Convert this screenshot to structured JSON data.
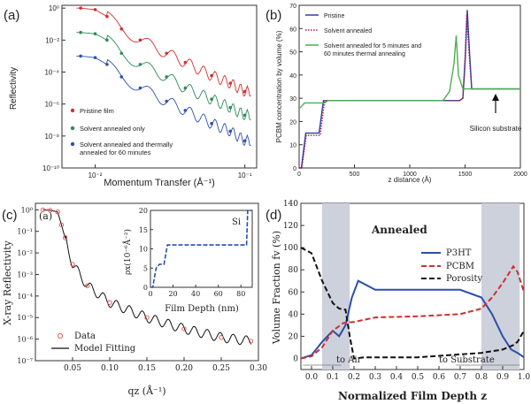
{
  "panels": {
    "a": {
      "letter": "(a)",
      "xlabel": "Momentum Transfer (Å⁻¹)",
      "ylabel": "Reflectivity",
      "yticks": [
        "10⁰",
        "10⁻²",
        "10⁻⁴",
        "10⁻⁶",
        "10⁻⁸",
        "10⁻¹⁰"
      ],
      "xticks": [
        "10⁻²",
        "10⁻¹"
      ],
      "legend": [
        "Pristine film",
        "Solvent annealed only",
        "Solvent annealed and thermally annealed for 60 minutes"
      ]
    },
    "b": {
      "letter": "(b)",
      "xlabel": "z distance (Å)",
      "ylabel": "PCBM concentration by volume (%)",
      "legend": [
        "Pristine",
        "Solvent annealed",
        "Solvent annealed for 5 minutes and 60 minutes thermal annealing"
      ],
      "annotation": "Silicon substrate"
    },
    "c": {
      "letter": "(c)",
      "inner_letter": "(a)",
      "xlabel": "qz (Å⁻¹)",
      "ylabel": "X-ray Reflectivity",
      "yticks": [
        "10⁰",
        "10⁻¹",
        "10⁻²",
        "10⁻³",
        "10⁻⁴",
        "10⁻⁵",
        "10⁻⁶",
        "10⁻⁷"
      ],
      "legend": [
        "Data",
        "Model Fitting"
      ],
      "inset": {
        "xlabel": "Film Depth (nm)",
        "ylabel": "ρx(10⁻⁶Å⁻²)",
        "annotation": "Si"
      }
    },
    "d": {
      "letter": "(d)",
      "title": "Annealed",
      "xlabel": "Normalized Film Depth z",
      "ylabel": "Volume Fraction fv (%)",
      "legend": [
        "P3HT",
        "PCBM",
        "Porosity"
      ],
      "left_label": "to Air",
      "right_label": "to Substrate"
    }
  },
  "chart_data": [
    {
      "panel": "a",
      "type": "scatter",
      "xscale": "log",
      "yscale": "log",
      "xlim": [
        0.006,
        0.12
      ],
      "ylim": [
        1e-10,
        1.5
      ],
      "xlabel": "Momentum Transfer (Å⁻¹)",
      "ylabel": "Reflectivity",
      "series": [
        {
          "name": "Pristine film",
          "color": "#d03030",
          "offset": 1,
          "x": [
            0.008,
            0.01,
            0.012,
            0.015,
            0.02,
            0.03,
            0.04,
            0.06,
            0.08,
            0.1
          ],
          "y": [
            1.0,
            0.8,
            0.3,
            0.05,
            0.01,
            0.0015,
            0.0004,
            6e-05,
            2e-05,
            6e-06
          ]
        },
        {
          "name": "Solvent annealed only",
          "color": "#2e8a5a",
          "offset": 0.03,
          "x": [
            0.008,
            0.01,
            0.012,
            0.015,
            0.02,
            0.03,
            0.04,
            0.06,
            0.08,
            0.1
          ],
          "y": [
            0.03,
            0.025,
            0.01,
            0.0015,
            0.0003,
            5e-05,
            1e-05,
            2e-06,
            6e-07,
            2e-07
          ]
        },
        {
          "name": "Solvent annealed and thermally annealed for 60 minutes",
          "color": "#3050b0",
          "offset": 0.001,
          "x": [
            0.008,
            0.01,
            0.012,
            0.015,
            0.02,
            0.03,
            0.04,
            0.06,
            0.08,
            0.1
          ],
          "y": [
            0.001,
            0.0008,
            0.0003,
            5e-05,
            1e-05,
            1.5e-06,
            4e-07,
            6e-08,
            2e-08,
            5e-09
          ]
        }
      ]
    },
    {
      "panel": "b",
      "type": "line",
      "xlim": [
        0,
        2000
      ],
      "ylim": [
        0,
        70
      ],
      "xticks": [
        0,
        500,
        1000,
        1500,
        2000
      ],
      "yticks": [
        0,
        10,
        20,
        30,
        40,
        50,
        60,
        70
      ],
      "xlabel": "z distance (Å)",
      "ylabel": "PCBM concentration by volume (%)",
      "series": [
        {
          "name": "Pristine",
          "color": "#2a3fa0",
          "style": "solid",
          "x": [
            0,
            20,
            60,
            80,
            180,
            220,
            1450,
            1480,
            1500,
            1520,
            1540,
            1560,
            1600,
            2000
          ],
          "y": [
            0,
            0,
            15,
            15,
            15,
            29,
            29,
            30,
            45,
            68,
            50,
            34,
            34,
            34
          ]
        },
        {
          "name": "Solvent annealed",
          "color": "#a02060",
          "style": "dotted",
          "x": [
            0,
            25,
            65,
            85,
            190,
            230,
            1450,
            1480,
            1500,
            1515,
            1535,
            1560,
            1600,
            2000
          ],
          "y": [
            0,
            0,
            14,
            14,
            14,
            29,
            29,
            30,
            48,
            66,
            50,
            34,
            34,
            34
          ]
        },
        {
          "name": "Solvent annealed for 5 minutes and 60 minutes thermal annealing",
          "color": "#4caf50",
          "style": "solid",
          "x": [
            0,
            10,
            50,
            80,
            230,
            260,
            1300,
            1360,
            1400,
            1420,
            1440,
            1480,
            1600,
            2000
          ],
          "y": [
            26,
            26,
            28,
            28,
            28,
            29,
            29,
            33,
            45,
            57,
            40,
            34,
            34,
            34
          ]
        }
      ]
    },
    {
      "panel": "c",
      "type": "scatter",
      "yscale": "log",
      "xlim": [
        0,
        0.3
      ],
      "ylim": [
        1e-07,
        2
      ],
      "xticks": [
        0.05,
        0.1,
        0.15,
        0.2,
        0.25,
        0.3
      ],
      "xlabel": "qz (Å⁻¹)",
      "ylabel": "X-ray Reflectivity",
      "series": [
        {
          "name": "Data",
          "color": "#e05050",
          "marker": "circle",
          "x": [
            0.01,
            0.02,
            0.03,
            0.035,
            0.04,
            0.05,
            0.07,
            0.1,
            0.15,
            0.2,
            0.25,
            0.29
          ],
          "y": [
            1,
            0.95,
            0.8,
            0.2,
            0.05,
            0.003,
            0.0003,
            5e-05,
            1e-05,
            3e-06,
            1.2e-06,
            8e-07
          ]
        },
        {
          "name": "Model Fitting",
          "color": "#111111",
          "marker": "line",
          "x": [
            0.01,
            0.02,
            0.03,
            0.035,
            0.04,
            0.05,
            0.07,
            0.1,
            0.15,
            0.2,
            0.25,
            0.29
          ],
          "y": [
            1,
            0.95,
            0.8,
            0.2,
            0.05,
            0.003,
            0.0003,
            5e-05,
            1e-05,
            3e-06,
            1.2e-06,
            8e-07
          ]
        }
      ],
      "inset": {
        "type": "line",
        "xlim": [
          0,
          90
        ],
        "ylim": [
          0,
          20
        ],
        "xticks": [
          0,
          20,
          40,
          60,
          80
        ],
        "yticks": [
          0,
          5,
          10,
          15,
          20
        ],
        "xlabel": "Film Depth (nm)",
        "ylabel": "ρx(10⁻⁶Å⁻²)",
        "x": [
          0,
          2,
          5,
          8,
          12,
          15,
          18,
          80,
          85,
          86,
          90
        ],
        "y": [
          0,
          0,
          5,
          6,
          6,
          11,
          11,
          11,
          11,
          20,
          20
        ]
      }
    },
    {
      "panel": "d",
      "type": "line",
      "xlim": [
        -0.05,
        1.0
      ],
      "ylim": [
        -10,
        140
      ],
      "xticks": [
        0.0,
        0.1,
        0.2,
        0.3,
        0.4,
        0.5,
        0.6,
        0.7,
        0.8,
        0.9,
        1.0
      ],
      "yticks": [
        0,
        20,
        40,
        60,
        80,
        100,
        120,
        140
      ],
      "xlabel": "Normalized Film Depth z",
      "ylabel": "Volume Fraction fv (%)",
      "shaded_regions": [
        [
          0.05,
          0.18
        ],
        [
          0.8,
          0.98
        ]
      ],
      "series": [
        {
          "name": "P3HT",
          "color": "#2a4fa8",
          "style": "solid",
          "x": [
            -0.05,
            0.0,
            0.05,
            0.1,
            0.13,
            0.16,
            0.19,
            0.22,
            0.3,
            0.5,
            0.7,
            0.8,
            0.85,
            0.9,
            0.94,
            0.97,
            1.0
          ],
          "y": [
            0,
            3,
            15,
            25,
            20,
            30,
            55,
            70,
            62,
            62,
            62,
            55,
            40,
            20,
            8,
            5,
            1
          ]
        },
        {
          "name": "PCBM",
          "color": "#d03030",
          "style": "dashed",
          "x": [
            -0.05,
            0.0,
            0.05,
            0.1,
            0.15,
            0.2,
            0.3,
            0.5,
            0.7,
            0.8,
            0.85,
            0.9,
            0.95,
            0.97,
            1.0
          ],
          "y": [
            0,
            2,
            10,
            25,
            32,
            33,
            37,
            38,
            40,
            45,
            55,
            68,
            83,
            78,
            60
          ]
        },
        {
          "name": "Porosity",
          "color": "#111111",
          "style": "dashed",
          "x": [
            -0.05,
            0.0,
            0.05,
            0.1,
            0.13,
            0.16,
            0.18,
            0.2,
            0.25,
            0.5,
            0.8,
            0.9,
            0.95,
            0.97,
            1.0
          ],
          "y": [
            100,
            95,
            70,
            50,
            45,
            44,
            20,
            0,
            1,
            1,
            5,
            8,
            12,
            15,
            25
          ]
        }
      ]
    }
  ]
}
